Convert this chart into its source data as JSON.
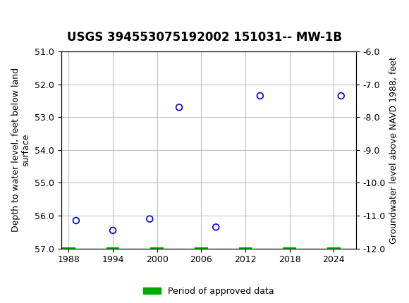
{
  "title": "USGS 394553075192002 151031-- MW-1B",
  "xlabel": "",
  "ylabel_left": "Depth to water level, feet below land\nsurface",
  "ylabel_right": "Groundwater level above NAVD 1988, feet",
  "x_data": [
    1989,
    1994,
    1999,
    2003,
    2008,
    2014,
    2025
  ],
  "y_left_data": [
    56.15,
    56.45,
    56.1,
    52.7,
    56.35,
    52.35,
    52.35
  ],
  "xlim": [
    1987,
    2027
  ],
  "ylim_left": [
    51.0,
    57.0
  ],
  "ylim_right": [
    -6.0,
    -12.0
  ],
  "xticks": [
    1988,
    1994,
    2000,
    2006,
    2012,
    2018,
    2024
  ],
  "yticks_left": [
    51.0,
    52.0,
    53.0,
    54.0,
    55.0,
    56.0,
    57.0
  ],
  "yticks_right": [
    -6.0,
    -7.0,
    -8.0,
    -9.0,
    -10.0,
    -11.0,
    -12.0
  ],
  "point_color": "#0000cc",
  "marker_facecolor": "none",
  "marker_edgecolor": "#0000cc",
  "grid_color": "#c0c0c0",
  "background_color": "#ffffff",
  "header_color": "#1a6b3c",
  "legend_label": "Period of approved data",
  "legend_color": "#00aa00",
  "green_bar_y": 57.0,
  "green_bar_x": [
    1988,
    1994,
    2000,
    2006,
    2012,
    2018,
    2024
  ],
  "title_fontsize": 12,
  "axis_fontsize": 9,
  "tick_fontsize": 9
}
